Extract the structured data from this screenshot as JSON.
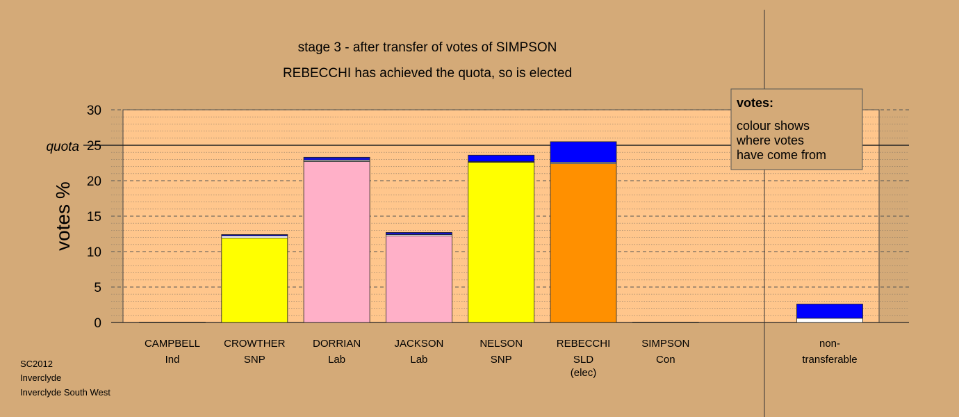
{
  "chart_data": {
    "type": "bar",
    "stacked": true,
    "title": "stage 3 - after transfer of votes of SIMPSON",
    "subtitle": "REBECCHI has achieved the quota, so is elected",
    "ylabel": "votes %",
    "ylim": [
      0,
      30
    ],
    "yticks": [
      0,
      5,
      10,
      15,
      20,
      25,
      30
    ],
    "quota": 25,
    "quota_label": "quota",
    "grid": true,
    "candidates": [
      {
        "name": "CAMPBELL",
        "party": "Ind",
        "note": "",
        "segments": [
          {
            "value": 0.05,
            "color": "#ffffff"
          }
        ]
      },
      {
        "name": "CROWTHER",
        "party": "SNP",
        "note": "",
        "segments": [
          {
            "value": 11.9,
            "color": "#ffff00"
          },
          {
            "value": 0.3,
            "color": "#ffffff"
          },
          {
            "value": 0.2,
            "color": "#1414c8"
          }
        ]
      },
      {
        "name": "DORRIAN",
        "party": "Lab",
        "note": "",
        "segments": [
          {
            "value": 22.7,
            "color": "#ffb0c8"
          },
          {
            "value": 0.2,
            "color": "#ffffff"
          },
          {
            "value": 0.4,
            "color": "#1414c8"
          }
        ]
      },
      {
        "name": "JACKSON",
        "party": "Lab",
        "note": "",
        "segments": [
          {
            "value": 12.2,
            "color": "#ffb0c8"
          },
          {
            "value": 0.2,
            "color": "#ffffff"
          },
          {
            "value": 0.3,
            "color": "#1414c8"
          }
        ]
      },
      {
        "name": "NELSON",
        "party": "SNP",
        "note": "",
        "segments": [
          {
            "value": 22.6,
            "color": "#ffff00"
          },
          {
            "value": 0.1,
            "color": "#ffffff"
          },
          {
            "value": 0.9,
            "color": "#0000ff"
          }
        ]
      },
      {
        "name": "REBECCHI",
        "party": "SLD",
        "note": "(elec)",
        "segments": [
          {
            "value": 22.4,
            "color": "#ff9000"
          },
          {
            "value": 0.2,
            "color": "#ffffff"
          },
          {
            "value": 2.9,
            "color": "#0000ff"
          }
        ]
      },
      {
        "name": "SIMPSON",
        "party": "Con",
        "note": "",
        "segments": [
          {
            "value": 0.05,
            "color": "#ffffff"
          }
        ]
      }
    ],
    "nontransferable": {
      "name": "non-",
      "party": "transferable",
      "segments": [
        {
          "value": 0.6,
          "color": "#ffffff"
        },
        {
          "value": 2.0,
          "color": "#0000ff"
        }
      ]
    },
    "legend": {
      "title": "votes:",
      "lines": [
        "colour shows",
        "where votes",
        "have come from"
      ],
      "placement": "top-right"
    }
  },
  "footer": {
    "lines": [
      "SC2012",
      "Inverclyde",
      "Inverclyde South West"
    ]
  },
  "colors": {
    "background": "#d4aa78",
    "plot_background": "#ffc68c"
  }
}
